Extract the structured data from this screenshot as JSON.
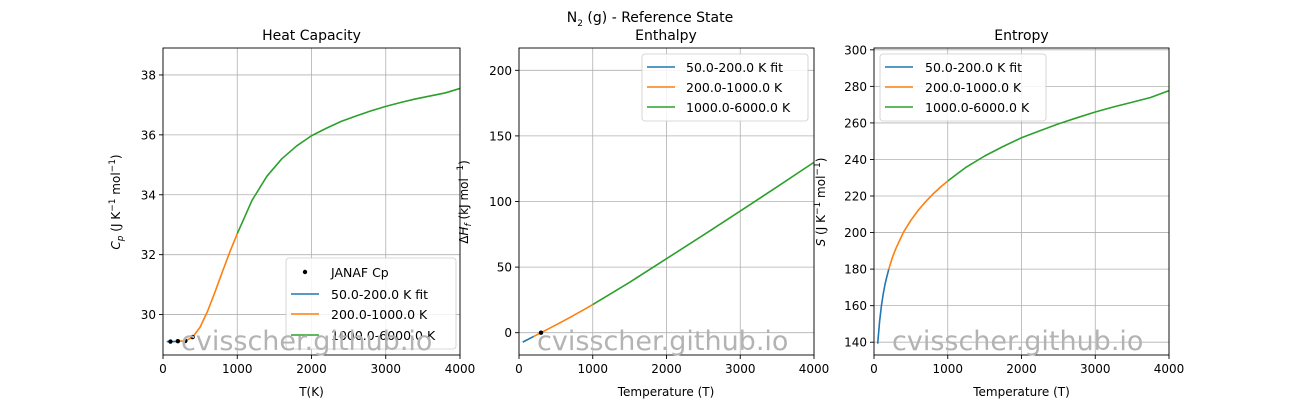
{
  "figure": {
    "suptitle_main": "N",
    "suptitle_sub": "2",
    "suptitle_rest": " (g) - Reference State",
    "watermark": "cvisscher.github.io"
  },
  "colors": {
    "fit_50_200": "#1f77b4",
    "fit_200_1000": "#ff7f0e",
    "fit_1000_6000": "#2ca02c",
    "janaf_points": "#000000",
    "grid": "#b0b0b0",
    "watermark": "#b3b3b3"
  },
  "chart_data": [
    {
      "type": "line",
      "title": "Heat Capacity",
      "xlabel": "T(K)",
      "ylabel": "C_p (J K^-1 mol^-1)",
      "xlim": [
        0,
        4000
      ],
      "ylim": [
        28.65,
        38.9
      ],
      "xticks": [
        "0",
        "1000",
        "2000",
        "3000",
        "4000"
      ],
      "yticks": [
        "30",
        "32",
        "34",
        "36",
        "38"
      ],
      "grid": true,
      "legend_position": "lower right",
      "legend": [
        "JANAF Cp",
        "50.0-200.0 K fit",
        "200.0-1000.0 K",
        "1000.0-6000.0 K"
      ],
      "series": [
        {
          "name": "JANAF Cp",
          "kind": "points",
          "points": [
            [
              100,
              29.1
            ],
            [
              200,
              29.11
            ],
            [
              298.15,
              29.12
            ],
            [
              300,
              29.12
            ],
            [
              400,
              29.25
            ]
          ]
        },
        {
          "name": "50.0-200.0 K fit",
          "points": [
            [
              50,
              29.1
            ],
            [
              100,
              29.1
            ],
            [
              150,
              29.1
            ],
            [
              200,
              29.11
            ]
          ]
        },
        {
          "name": "200.0-1000.0 K",
          "points": [
            [
              200,
              29.11
            ],
            [
              300,
              29.12
            ],
            [
              400,
              29.25
            ],
            [
              500,
              29.58
            ],
            [
              600,
              30.11
            ],
            [
              700,
              30.75
            ],
            [
              800,
              31.43
            ],
            [
              900,
              32.09
            ],
            [
              1000,
              32.7
            ]
          ]
        },
        {
          "name": "1000.0-6000.0 K",
          "points": [
            [
              1000,
              32.7
            ],
            [
              1200,
              33.82
            ],
            [
              1400,
              34.62
            ],
            [
              1600,
              35.2
            ],
            [
              1800,
              35.63
            ],
            [
              2000,
              35.97
            ],
            [
              2200,
              36.22
            ],
            [
              2400,
              36.45
            ],
            [
              2600,
              36.63
            ],
            [
              2800,
              36.8
            ],
            [
              3000,
              36.95
            ],
            [
              3200,
              37.08
            ],
            [
              3400,
              37.2
            ],
            [
              3600,
              37.3
            ],
            [
              3800,
              37.4
            ],
            [
              4000,
              37.55
            ]
          ]
        }
      ]
    },
    {
      "type": "line",
      "title": "Enthalpy",
      "xlabel": "Temperature (T)",
      "ylabel": "ΔH_f (kJ mol^-1)",
      "xlim": [
        0,
        4000
      ],
      "ylim": [
        -17,
        217
      ],
      "xticks": [
        "0",
        "1000",
        "2000",
        "3000",
        "4000"
      ],
      "yticks": [
        "0",
        "50",
        "100",
        "150",
        "200"
      ],
      "grid": true,
      "legend_position": "upper right",
      "legend": [
        "50.0-200.0 K fit",
        "200.0-1000.0 K",
        "1000.0-6000.0 K"
      ],
      "series": [
        {
          "name": "JANAF",
          "kind": "points",
          "points": [
            [
              298.15,
              0.0
            ]
          ]
        },
        {
          "name": "50.0-200.0 K fit",
          "points": [
            [
              50,
              -7.2
            ],
            [
              100,
              -5.77
            ],
            [
              150,
              -4.31
            ],
            [
              200,
              -2.86
            ]
          ]
        },
        {
          "name": "200.0-1000.0 K",
          "points": [
            [
              200,
              -2.86
            ],
            [
              298.15,
              0.0
            ],
            [
              400,
              2.97
            ],
            [
              500,
              5.91
            ],
            [
              600,
              8.89
            ],
            [
              700,
              11.94
            ],
            [
              800,
              15.05
            ],
            [
              900,
              18.22
            ],
            [
              1000,
              21.46
            ]
          ]
        },
        {
          "name": "1000.0-6000.0 K",
          "points": [
            [
              1000,
              21.46
            ],
            [
              1500,
              38.4
            ],
            [
              2000,
              56.4
            ],
            [
              2500,
              74.4
            ],
            [
              3000,
              92.7
            ],
            [
              3500,
              111.2
            ],
            [
              4000,
              129.9
            ]
          ]
        }
      ]
    },
    {
      "type": "line",
      "title": "Entropy",
      "xlabel": "Temperature (T)",
      "ylabel": "S (J K^-1 mol^-1)",
      "xlim": [
        0,
        4000
      ],
      "ylim": [
        133,
        301
      ],
      "xticks": [
        "0",
        "1000",
        "2000",
        "3000",
        "4000"
      ],
      "yticks": [
        "140",
        "160",
        "180",
        "200",
        "220",
        "240",
        "260",
        "280",
        "300"
      ],
      "grid": true,
      "legend_position": "upper left",
      "legend": [
        "50.0-200.0 K fit",
        "200.0-1000.0 K",
        "1000.0-6000.0 K"
      ],
      "series": [
        {
          "name": "50.0-200.0 K fit",
          "points": [
            [
              50,
              139.2
            ],
            [
              75,
              151.0
            ],
            [
              100,
              159.8
            ],
            [
              125,
              166.4
            ],
            [
              150,
              171.8
            ],
            [
              175,
              176.0
            ],
            [
              200,
              179.9
            ]
          ]
        },
        {
          "name": "200.0-1000.0 K",
          "points": [
            [
              200,
              179.9
            ],
            [
              250,
              186.5
            ],
            [
              300,
              191.6
            ],
            [
              400,
              200.2
            ],
            [
              500,
              206.7
            ],
            [
              600,
              212.2
            ],
            [
              700,
              216.9
            ],
            [
              800,
              221.1
            ],
            [
              900,
              224.8
            ],
            [
              1000,
              228.2
            ]
          ]
        },
        {
          "name": "1000.0-6000.0 K",
          "points": [
            [
              1000,
              228.2
            ],
            [
              1250,
              235.8
            ],
            [
              1500,
              241.9
            ],
            [
              1750,
              247.1
            ],
            [
              2000,
              251.9
            ],
            [
              2250,
              255.7
            ],
            [
              2500,
              259.5
            ],
            [
              2750,
              262.8
            ],
            [
              3000,
              266.0
            ],
            [
              3250,
              268.8
            ],
            [
              3500,
              271.3
            ],
            [
              3750,
              273.9
            ],
            [
              4000,
              277.7
            ]
          ]
        }
      ]
    }
  ]
}
